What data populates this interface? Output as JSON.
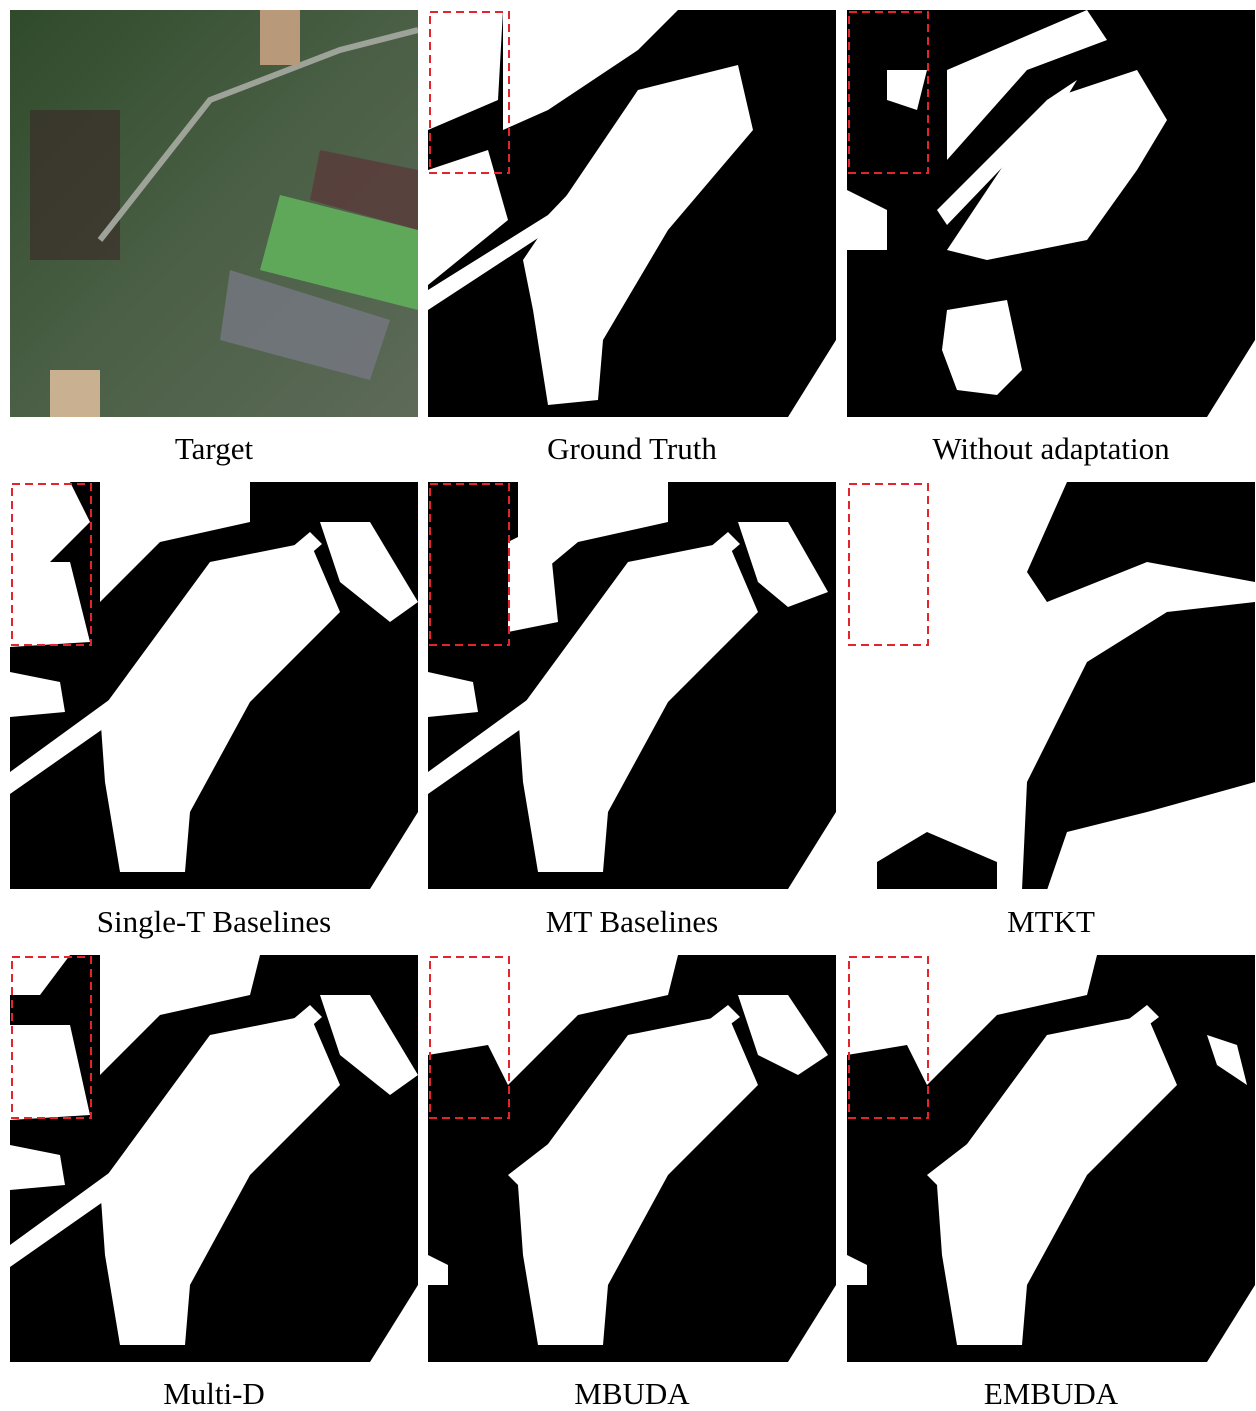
{
  "panels": [
    {
      "caption": "Target"
    },
    {
      "caption": "Ground Truth"
    },
    {
      "caption": "Without adaptation"
    },
    {
      "caption": "Single-T Baselines"
    },
    {
      "caption": "MT Baselines"
    },
    {
      "caption": "MTKT"
    },
    {
      "caption": "Multi-D"
    },
    {
      "caption": "MBUDA"
    },
    {
      "caption": "EMBUDA"
    }
  ]
}
